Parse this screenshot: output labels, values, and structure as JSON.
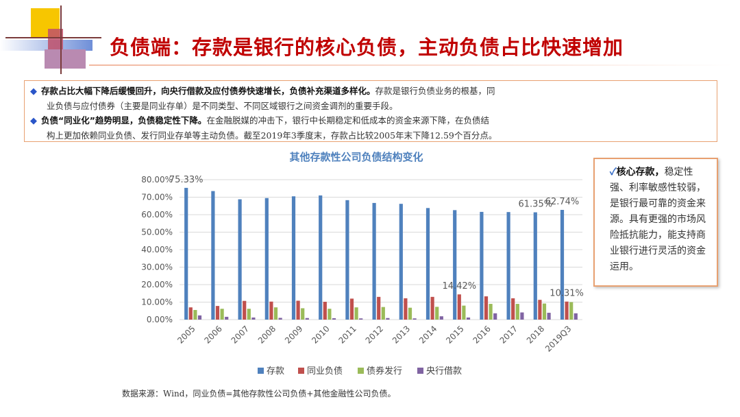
{
  "title": "负债端：存款是银行的核心负债，主动负债占比快速增加",
  "bullets": [
    {
      "lead": "存款占比大幅下降后缓慢回升，向央行借款及应付债券快速增长，负债补充渠道多样化。",
      "text1": "存款是银行负债业务的根基，同",
      "text2": "业负债与应付债券（主要是同业存单）是不同类型、不同区域银行之间资金调剂的重要手段。"
    },
    {
      "lead": "负债“同业化”趋势明显，负债稳定性下降。",
      "text1": "在金融脱媒的冲击下，银行中长期稳定和低成本的资金来源下降，在负债结",
      "text2": "构上更加依赖同业负债、发行同业存单等主动负债。截至2019年3季度末，存款占比较2005年末下降12.59个百分点。"
    }
  ],
  "note": {
    "check": "✓",
    "lead": "核心存款，",
    "text": "稳定性强、利率敏感性较弱，是银行最可靠的资金来源。具有更强的市场风险抵抗能力，能支持商业银行进行灵活的资金运用。"
  },
  "source": "数据来源：Wind，同业负债=其他存款性公司负债+其他金融性公司负债。",
  "colors": {
    "title": "#c00000",
    "deposits": "#4f81bd",
    "interbank": "#c0504d",
    "bonds": "#9bbb59",
    "central_bank": "#8064a2"
  },
  "chart_data": {
    "type": "bar",
    "title": "其他存款性公司负债结构变化",
    "categories": [
      "2005",
      "2006",
      "2007",
      "2008",
      "2009",
      "2010",
      "2011",
      "2012",
      "2013",
      "2014",
      "2015",
      "2016",
      "2017",
      "2018",
      "2019Q3"
    ],
    "ylim": [
      0,
      80
    ],
    "yticks": [
      "0.00%",
      "10.00%",
      "20.00%",
      "30.00%",
      "40.00%",
      "50.00%",
      "60.00%",
      "70.00%",
      "80.00%"
    ],
    "legend_position": "bottom",
    "grid": true,
    "series": [
      {
        "name": "存款",
        "values": [
          75.33,
          73.5,
          68.8,
          69.5,
          70.5,
          71.0,
          68.3,
          66.7,
          66.2,
          63.8,
          62.6,
          61.6,
          61.5,
          61.35,
          62.74
        ]
      },
      {
        "name": "同业负债",
        "values": [
          7.0,
          7.8,
          10.7,
          10.3,
          10.8,
          10.2,
          12.0,
          13.0,
          12.2,
          13.0,
          14.42,
          13.3,
          12.2,
          11.3,
          10.31
        ]
      },
      {
        "name": "债券发行",
        "values": [
          5.5,
          6.2,
          6.2,
          7.0,
          6.5,
          6.2,
          7.0,
          7.2,
          6.8,
          7.3,
          8.0,
          9.0,
          9.0,
          9.2,
          10.0
        ]
      },
      {
        "name": "央行借款",
        "values": [
          2.4,
          1.6,
          1.2,
          1.0,
          0.9,
          0.8,
          0.7,
          0.9,
          0.7,
          1.9,
          1.2,
          3.6,
          4.1,
          3.9,
          3.6
        ]
      }
    ],
    "annotations": [
      {
        "category": "2005",
        "series": "存款",
        "label": "75.33%"
      },
      {
        "category": "2018",
        "series": "存款",
        "label": "61.35%"
      },
      {
        "category": "2019Q3",
        "series": "存款",
        "label": "62.74%"
      },
      {
        "category": "2015",
        "series": "同业负债",
        "label": "14.42%"
      },
      {
        "category": "2019Q3",
        "series": "同业负债",
        "label": "10.31%"
      }
    ]
  }
}
